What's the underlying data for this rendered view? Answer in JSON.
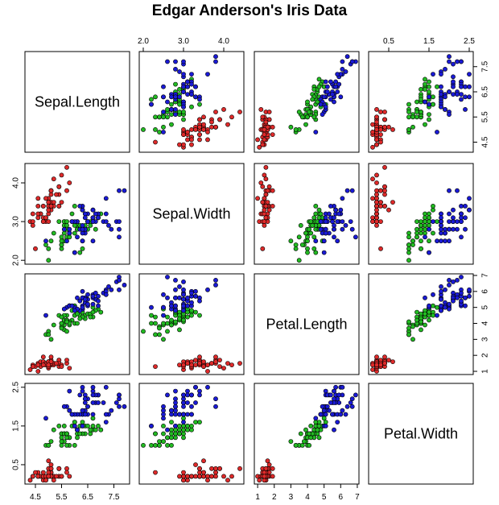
{
  "chart_data": {
    "type": "scatter",
    "title": "Edgar Anderson's Iris Data",
    "variables": [
      {
        "name": "Sepal.Length",
        "range": [
          4.1,
          8.1
        ],
        "ticks": [
          4.5,
          5.5,
          6.5,
          7.5
        ],
        "tick_labels": [
          "4.5",
          "5.5",
          "6.5",
          "7.5"
        ]
      },
      {
        "name": "Sepal.Width",
        "range": [
          1.9,
          4.5
        ],
        "ticks": [
          2.0,
          3.0,
          4.0
        ],
        "tick_labels": [
          "2.0",
          "3.0",
          "4.0"
        ]
      },
      {
        "name": "Petal.Length",
        "range": [
          0.8,
          7.1
        ],
        "ticks": [
          1,
          2,
          3,
          4,
          5,
          6,
          7
        ],
        "tick_labels": [
          "1",
          "2",
          "3",
          "4",
          "5",
          "6",
          "7"
        ]
      },
      {
        "name": "Petal.Width",
        "range": [
          0.0,
          2.6
        ],
        "ticks": [
          0.5,
          1.5,
          2.5
        ],
        "tick_labels": [
          "0.5",
          "1.5",
          "2.5"
        ]
      }
    ],
    "colors": {
      "setosa": "#df2a2a",
      "versicolor": "#22bb22",
      "virginica": "#1a1ad6"
    },
    "series": [
      {
        "color": "#df2a2a",
        "values": [
          [
            5.1,
            3.5,
            1.4,
            0.2
          ],
          [
            4.9,
            3.0,
            1.4,
            0.2
          ],
          [
            4.7,
            3.2,
            1.3,
            0.2
          ],
          [
            4.6,
            3.1,
            1.5,
            0.2
          ],
          [
            5.0,
            3.6,
            1.4,
            0.2
          ],
          [
            5.4,
            3.9,
            1.7,
            0.4
          ],
          [
            4.6,
            3.4,
            1.4,
            0.3
          ],
          [
            5.0,
            3.4,
            1.5,
            0.2
          ],
          [
            4.4,
            2.9,
            1.4,
            0.2
          ],
          [
            4.9,
            3.1,
            1.5,
            0.1
          ],
          [
            5.4,
            3.7,
            1.5,
            0.2
          ],
          [
            4.8,
            3.4,
            1.6,
            0.2
          ],
          [
            4.8,
            3.0,
            1.4,
            0.1
          ],
          [
            4.3,
            3.0,
            1.1,
            0.1
          ],
          [
            5.8,
            4.0,
            1.2,
            0.2
          ],
          [
            5.7,
            4.4,
            1.5,
            0.4
          ],
          [
            5.4,
            3.9,
            1.3,
            0.4
          ],
          [
            5.1,
            3.5,
            1.4,
            0.3
          ],
          [
            5.7,
            3.8,
            1.7,
            0.3
          ],
          [
            5.1,
            3.8,
            1.5,
            0.3
          ],
          [
            5.4,
            3.4,
            1.7,
            0.2
          ],
          [
            5.1,
            3.7,
            1.5,
            0.4
          ],
          [
            4.6,
            3.6,
            1.0,
            0.2
          ],
          [
            5.1,
            3.3,
            1.7,
            0.5
          ],
          [
            4.8,
            3.4,
            1.9,
            0.2
          ],
          [
            5.0,
            3.0,
            1.6,
            0.2
          ],
          [
            5.0,
            3.4,
            1.6,
            0.4
          ],
          [
            5.2,
            3.5,
            1.5,
            0.2
          ],
          [
            5.2,
            3.4,
            1.4,
            0.2
          ],
          [
            4.7,
            3.2,
            1.6,
            0.2
          ],
          [
            4.8,
            3.1,
            1.6,
            0.2
          ],
          [
            5.4,
            3.4,
            1.5,
            0.4
          ],
          [
            5.2,
            4.1,
            1.5,
            0.1
          ],
          [
            5.5,
            4.2,
            1.4,
            0.2
          ],
          [
            4.9,
            3.1,
            1.5,
            0.2
          ],
          [
            5.0,
            3.2,
            1.2,
            0.2
          ],
          [
            5.5,
            3.5,
            1.3,
            0.2
          ],
          [
            4.9,
            3.6,
            1.4,
            0.1
          ],
          [
            4.4,
            3.0,
            1.3,
            0.2
          ],
          [
            5.1,
            3.4,
            1.5,
            0.2
          ],
          [
            5.0,
            3.5,
            1.3,
            0.3
          ],
          [
            4.5,
            2.3,
            1.3,
            0.3
          ],
          [
            4.4,
            3.2,
            1.3,
            0.2
          ],
          [
            5.0,
            3.5,
            1.6,
            0.6
          ],
          [
            5.1,
            3.8,
            1.9,
            0.4
          ],
          [
            4.8,
            3.0,
            1.4,
            0.3
          ],
          [
            5.1,
            3.8,
            1.6,
            0.2
          ],
          [
            4.6,
            3.2,
            1.4,
            0.2
          ],
          [
            5.3,
            3.7,
            1.5,
            0.2
          ],
          [
            5.0,
            3.3,
            1.4,
            0.2
          ]
        ]
      },
      {
        "color": "#22bb22",
        "values": [
          [
            7.0,
            3.2,
            4.7,
            1.4
          ],
          [
            6.4,
            3.2,
            4.5,
            1.5
          ],
          [
            6.9,
            3.1,
            4.9,
            1.5
          ],
          [
            5.5,
            2.3,
            4.0,
            1.3
          ],
          [
            6.5,
            2.8,
            4.6,
            1.5
          ],
          [
            5.7,
            2.8,
            4.5,
            1.3
          ],
          [
            6.3,
            3.3,
            4.7,
            1.6
          ],
          [
            4.9,
            2.4,
            3.3,
            1.0
          ],
          [
            6.6,
            2.9,
            4.6,
            1.3
          ],
          [
            5.2,
            2.7,
            3.9,
            1.4
          ],
          [
            5.0,
            2.0,
            3.5,
            1.0
          ],
          [
            5.9,
            3.0,
            4.2,
            1.5
          ],
          [
            6.0,
            2.2,
            4.0,
            1.0
          ],
          [
            6.1,
            2.9,
            4.7,
            1.4
          ],
          [
            5.6,
            2.9,
            3.6,
            1.3
          ],
          [
            6.7,
            3.1,
            4.4,
            1.4
          ],
          [
            5.6,
            3.0,
            4.5,
            1.5
          ],
          [
            5.8,
            2.7,
            4.1,
            1.0
          ],
          [
            6.2,
            2.2,
            4.5,
            1.5
          ],
          [
            5.6,
            2.5,
            3.9,
            1.1
          ],
          [
            5.9,
            3.2,
            4.8,
            1.8
          ],
          [
            6.1,
            2.8,
            4.0,
            1.3
          ],
          [
            6.3,
            2.5,
            4.9,
            1.5
          ],
          [
            6.1,
            2.8,
            4.7,
            1.2
          ],
          [
            6.4,
            2.9,
            4.3,
            1.3
          ],
          [
            6.6,
            3.0,
            4.4,
            1.4
          ],
          [
            6.8,
            2.8,
            4.8,
            1.4
          ],
          [
            6.7,
            3.0,
            5.0,
            1.7
          ],
          [
            6.0,
            2.9,
            4.5,
            1.5
          ],
          [
            5.7,
            2.6,
            3.5,
            1.0
          ],
          [
            5.5,
            2.4,
            3.8,
            1.1
          ],
          [
            5.5,
            2.4,
            3.7,
            1.0
          ],
          [
            5.8,
            2.7,
            3.9,
            1.2
          ],
          [
            6.0,
            2.7,
            5.1,
            1.6
          ],
          [
            5.4,
            3.0,
            4.5,
            1.5
          ],
          [
            6.0,
            3.4,
            4.5,
            1.6
          ],
          [
            6.7,
            3.1,
            4.7,
            1.5
          ],
          [
            6.3,
            2.3,
            4.4,
            1.3
          ],
          [
            5.6,
            3.0,
            4.1,
            1.3
          ],
          [
            5.5,
            2.5,
            4.0,
            1.3
          ],
          [
            5.5,
            2.6,
            4.4,
            1.2
          ],
          [
            6.1,
            3.0,
            4.6,
            1.4
          ],
          [
            5.8,
            2.6,
            4.0,
            1.2
          ],
          [
            5.0,
            2.3,
            3.3,
            1.0
          ],
          [
            5.6,
            2.7,
            4.2,
            1.3
          ],
          [
            5.7,
            3.0,
            4.2,
            1.2
          ],
          [
            5.7,
            2.9,
            4.2,
            1.3
          ],
          [
            6.2,
            2.9,
            4.3,
            1.3
          ],
          [
            5.1,
            2.5,
            3.0,
            1.1
          ],
          [
            5.7,
            2.8,
            4.1,
            1.3
          ]
        ]
      },
      {
        "color": "#1a1ad6",
        "values": [
          [
            6.3,
            3.3,
            6.0,
            2.5
          ],
          [
            5.8,
            2.7,
            5.1,
            1.9
          ],
          [
            7.1,
            3.0,
            5.9,
            2.1
          ],
          [
            6.3,
            2.9,
            5.6,
            1.8
          ],
          [
            6.5,
            3.0,
            5.8,
            2.2
          ],
          [
            7.6,
            3.0,
            6.6,
            2.1
          ],
          [
            4.9,
            2.5,
            4.5,
            1.7
          ],
          [
            7.3,
            2.9,
            6.3,
            1.8
          ],
          [
            6.7,
            2.5,
            5.8,
            1.8
          ],
          [
            7.2,
            3.6,
            6.1,
            2.5
          ],
          [
            6.5,
            3.2,
            5.1,
            2.0
          ],
          [
            6.4,
            2.7,
            5.3,
            1.9
          ],
          [
            6.8,
            3.0,
            5.5,
            2.1
          ],
          [
            5.7,
            2.5,
            5.0,
            2.0
          ],
          [
            5.8,
            2.8,
            5.1,
            2.4
          ],
          [
            6.4,
            3.2,
            5.3,
            2.3
          ],
          [
            6.5,
            3.0,
            5.5,
            1.8
          ],
          [
            7.7,
            3.8,
            6.7,
            2.2
          ],
          [
            7.7,
            2.6,
            6.9,
            2.3
          ],
          [
            6.0,
            2.2,
            5.0,
            1.5
          ],
          [
            6.9,
            3.2,
            5.7,
            2.3
          ],
          [
            5.6,
            2.8,
            4.9,
            2.0
          ],
          [
            7.7,
            2.8,
            6.7,
            2.0
          ],
          [
            6.3,
            2.7,
            4.9,
            1.8
          ],
          [
            6.7,
            3.3,
            5.7,
            2.1
          ],
          [
            7.2,
            3.2,
            6.0,
            1.8
          ],
          [
            6.2,
            2.8,
            4.8,
            1.8
          ],
          [
            6.1,
            3.0,
            4.9,
            1.8
          ],
          [
            6.4,
            2.8,
            5.6,
            2.1
          ],
          [
            7.2,
            3.0,
            5.8,
            1.6
          ],
          [
            7.4,
            2.8,
            6.1,
            1.9
          ],
          [
            7.9,
            3.8,
            6.4,
            2.0
          ],
          [
            6.4,
            2.8,
            5.6,
            2.2
          ],
          [
            6.3,
            2.8,
            5.1,
            1.5
          ],
          [
            6.1,
            2.6,
            5.6,
            1.4
          ],
          [
            7.7,
            3.0,
            6.1,
            2.3
          ],
          [
            6.3,
            3.4,
            5.6,
            2.4
          ],
          [
            6.4,
            3.1,
            5.5,
            1.8
          ],
          [
            6.0,
            3.0,
            4.8,
            1.8
          ],
          [
            6.9,
            3.1,
            5.4,
            2.1
          ],
          [
            6.7,
            3.1,
            5.6,
            2.4
          ],
          [
            6.9,
            3.1,
            5.1,
            2.3
          ],
          [
            5.8,
            2.7,
            5.1,
            1.9
          ],
          [
            6.8,
            3.2,
            5.9,
            2.3
          ],
          [
            6.7,
            3.3,
            5.7,
            2.5
          ],
          [
            6.7,
            3.0,
            5.2,
            2.3
          ],
          [
            6.3,
            2.5,
            5.0,
            1.9
          ],
          [
            6.5,
            3.0,
            5.2,
            2.0
          ],
          [
            6.2,
            3.4,
            5.4,
            2.3
          ],
          [
            5.9,
            3.0,
            5.1,
            1.8
          ]
        ]
      }
    ],
    "grid": false,
    "legend": "none"
  }
}
